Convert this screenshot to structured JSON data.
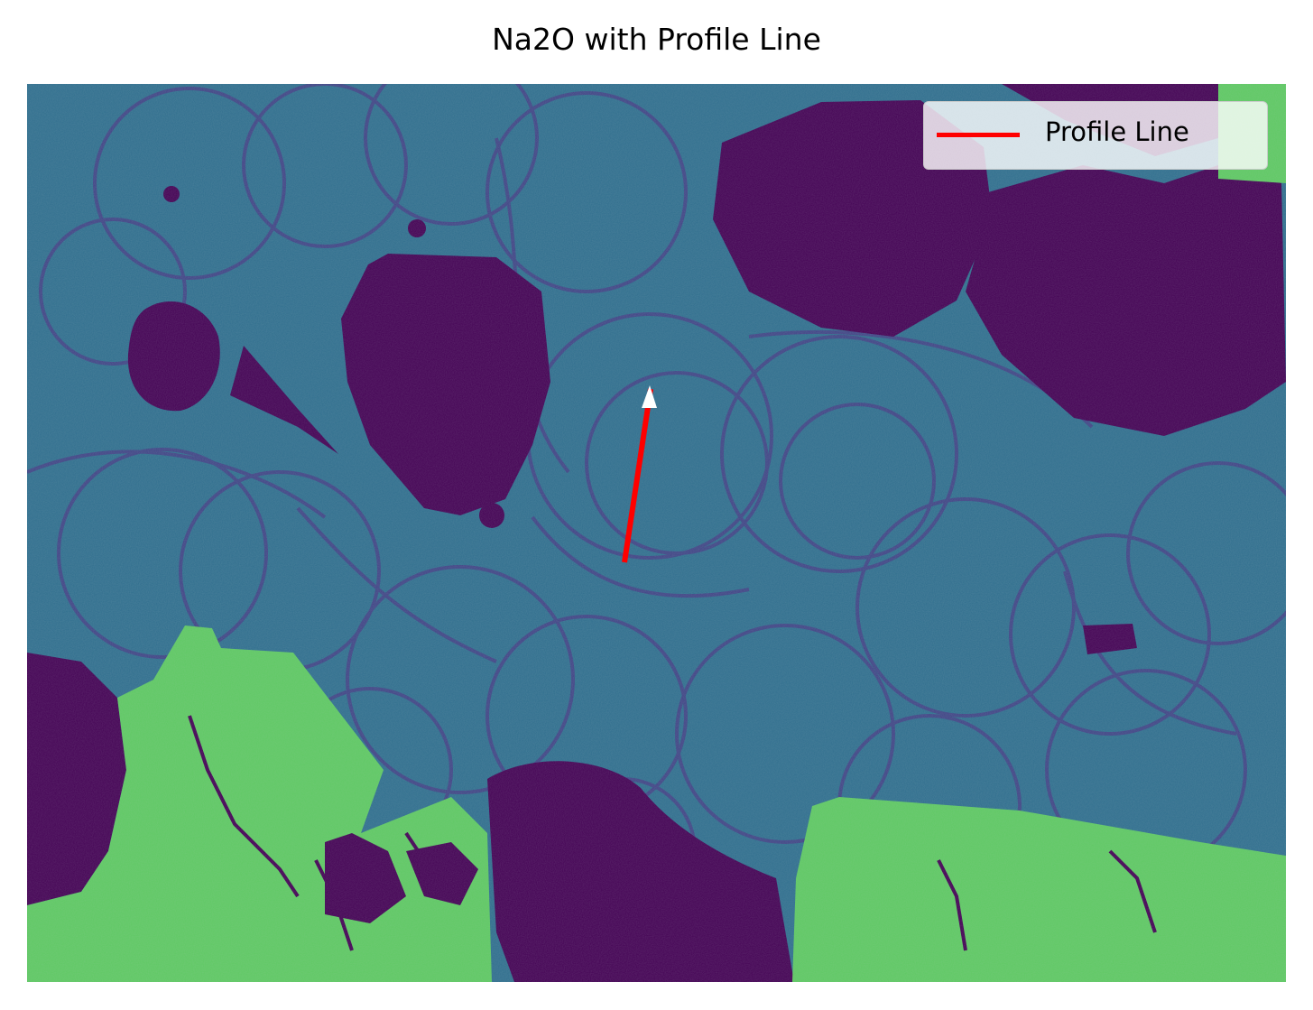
{
  "figure": {
    "title": "Na2O with Profile Line"
  },
  "legend": {
    "entries": [
      {
        "label": "Profile Line",
        "color": "#ff0000"
      }
    ],
    "placement": "top-right"
  },
  "colors": {
    "matrix": "#2f6e8e",
    "veins": "#433e85",
    "dark_phase": "#440154",
    "bright_phase": "#5ec962",
    "profile_line": "#ff0000",
    "arrowhead": "#ffffff"
  },
  "colormap": "viridis"
}
